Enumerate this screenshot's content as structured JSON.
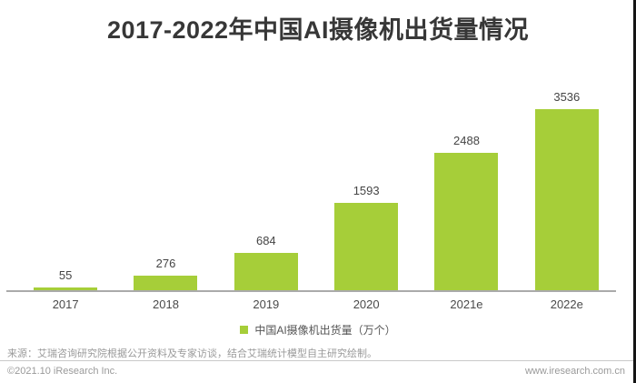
{
  "title": "2017-2022年中国AI摄像机出货量情况",
  "chart_data": {
    "type": "bar",
    "title": "2017-2022年中国AI摄像机出货量情况",
    "categories": [
      "2017",
      "2018",
      "2019",
      "2020",
      "2021e",
      "2022e"
    ],
    "values": [
      55,
      276,
      684,
      1593,
      2488,
      3536
    ],
    "series_name": "中国AI摄像机出货量（万个）",
    "bar_color": "#a6ce39",
    "xlabel": "",
    "ylabel": "",
    "ylim": [
      0,
      3600
    ],
    "grid": false,
    "legend_position": "bottom",
    "value_labels_shown": true
  },
  "legend": {
    "label": "中国AI摄像机出货量（万个）",
    "marker_color": "#a6ce39",
    "marker_icon": "square-icon"
  },
  "footer": {
    "source": "来源：艾瑞咨询研究院根据公开资料及专家访谈，结合艾瑞统计模型自主研究绘制。",
    "copyright": "©2021.10 iResearch Inc.",
    "website": "www.iresearch.com.cn"
  },
  "colors": {
    "title_text": "#373737",
    "bar": "#a6ce39",
    "axis_line": "#aaaaaa",
    "footer_text": "#9a9a9a",
    "background": "#ffffff"
  }
}
